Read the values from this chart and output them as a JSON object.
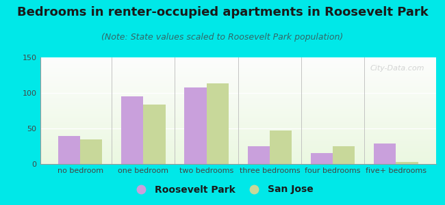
{
  "title": "Bedrooms in renter-occupied apartments in Roosevelt Park",
  "subtitle": "(Note: State values scaled to Roosevelt Park population)",
  "categories": [
    "no bedroom",
    "one bedroom",
    "two bedrooms",
    "three bedrooms",
    "four bedrooms",
    "five+ bedrooms"
  ],
  "roosevelt_park": [
    39,
    95,
    108,
    25,
    15,
    29
  ],
  "san_jose": [
    35,
    84,
    113,
    47,
    25,
    3
  ],
  "bar_color_rp": "#c9a0dc",
  "bar_color_sj": "#c8d89a",
  "background_outer": "#00e8e8",
  "ylim": [
    0,
    150
  ],
  "yticks": [
    0,
    50,
    100,
    150
  ],
  "watermark": "City-Data.com",
  "legend_rp": "Roosevelt Park",
  "legend_sj": "San Jose",
  "title_fontsize": 13,
  "subtitle_fontsize": 9,
  "tick_fontsize": 8,
  "legend_fontsize": 10
}
